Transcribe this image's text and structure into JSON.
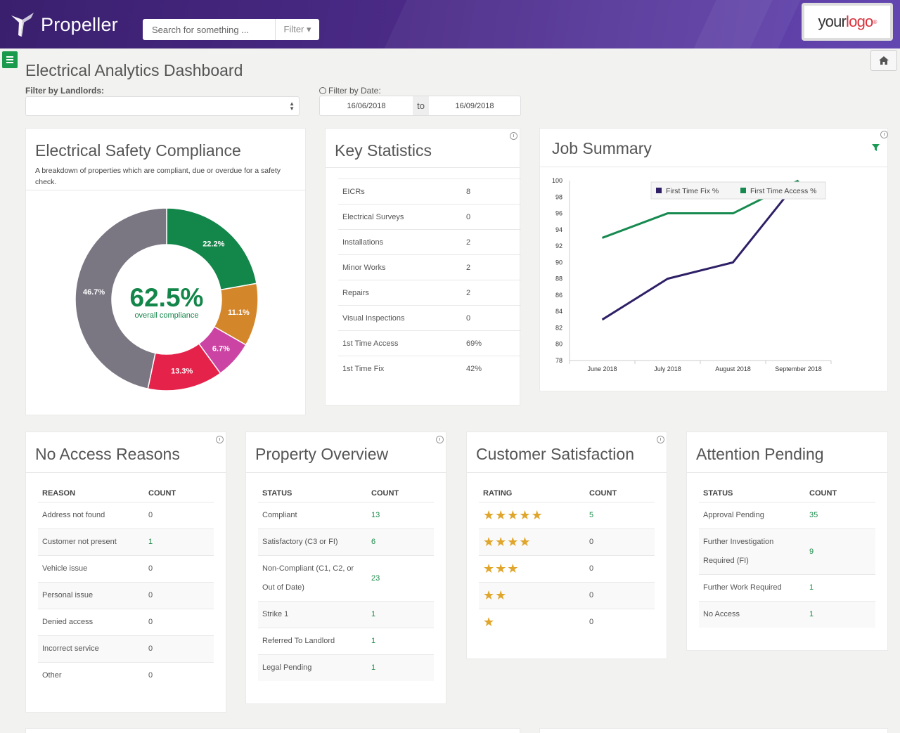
{
  "header": {
    "brand": "Propeller",
    "search_placeholder": "Search for something ...",
    "filter_label": "Filter ▾",
    "logo_your": "your",
    "logo_logo": "logo",
    "logo_reg": "®"
  },
  "page": {
    "title": "Electrical Analytics Dashboard",
    "landlord_label": "Filter by Landlords:",
    "date_label": "Filter by Date:",
    "date_from": "16/06/2018",
    "date_to_word": "to",
    "date_to": "16/09/2018"
  },
  "compliance": {
    "title": "Electrical Safety Compliance",
    "description": "A breakdown of properties which are compliant, due or overdue for a safety check.",
    "center_value": "62.5%",
    "center_label": "overall compliance",
    "slices": [
      {
        "label": "22.2%",
        "value": 22.2,
        "color": "#13864a"
      },
      {
        "label": "11.1%",
        "value": 11.1,
        "color": "#d4862a"
      },
      {
        "label": "6.7%",
        "value": 6.7,
        "color": "#cc44a3"
      },
      {
        "label": "13.3%",
        "value": 13.3,
        "color": "#e5224a"
      },
      {
        "label": "46.7%",
        "value": 46.7,
        "color": "#7a7682"
      }
    ]
  },
  "key_stats": {
    "title": "Key Statistics",
    "rows": [
      {
        "label": "EICRs",
        "value": "8"
      },
      {
        "label": "Electrical Surveys",
        "value": "0"
      },
      {
        "label": "Installations",
        "value": "2"
      },
      {
        "label": "Minor Works",
        "value": "2"
      },
      {
        "label": "Repairs",
        "value": "2"
      },
      {
        "label": "Visual Inspections",
        "value": "0"
      },
      {
        "label": "1st Time Access",
        "value": "69%"
      },
      {
        "label": "1st Time Fix",
        "value": "42%"
      }
    ]
  },
  "job_summary": {
    "title": "Job Summary",
    "chart_data": {
      "type": "line",
      "categories": [
        "June 2018",
        "July 2018",
        "August 2018",
        "September 2018"
      ],
      "series": [
        {
          "name": "First Time Fix %",
          "values": [
            83,
            88,
            90,
            100
          ],
          "color": "#2e1f66"
        },
        {
          "name": "First Time Access %",
          "values": [
            93,
            96,
            96,
            100
          ],
          "color": "#178a50"
        }
      ],
      "ylim": [
        78,
        100
      ],
      "yticks": [
        "100",
        "98",
        "96",
        "94",
        "92",
        "90",
        "88",
        "86",
        "84",
        "82",
        "80",
        "78"
      ],
      "legend": "top-right"
    }
  },
  "no_access": {
    "title": "No Access Reasons",
    "col1": "REASON",
    "col2": "COUNT",
    "rows": [
      {
        "label": "Address not found",
        "value": "0"
      },
      {
        "label": "Customer not present",
        "value": "1"
      },
      {
        "label": "Vehicle issue",
        "value": "0"
      },
      {
        "label": "Personal issue",
        "value": "0"
      },
      {
        "label": "Denied access",
        "value": "0"
      },
      {
        "label": "Incorrect service",
        "value": "0"
      },
      {
        "label": "Other",
        "value": "0"
      }
    ]
  },
  "property_overview": {
    "title": "Property Overview",
    "col1": "STATUS",
    "col2": "COUNT",
    "rows": [
      {
        "label": "Compliant",
        "value": "13"
      },
      {
        "label": "Satisfactory (C3 or FI)",
        "value": "6"
      },
      {
        "label": "Non-Compliant (C1, C2, or Out of Date)",
        "value": "23"
      },
      {
        "label": "Strike 1",
        "value": "1"
      },
      {
        "label": "Referred To Landlord",
        "value": "1"
      },
      {
        "label": "Legal Pending",
        "value": "1"
      }
    ]
  },
  "satisfaction": {
    "title": "Customer Satisfaction",
    "col1": "RATING",
    "col2": "COUNT",
    "rows": [
      {
        "stars": 5,
        "value": "5"
      },
      {
        "stars": 4,
        "value": "0"
      },
      {
        "stars": 3,
        "value": "0"
      },
      {
        "stars": 2,
        "value": "0"
      },
      {
        "stars": 1,
        "value": "0"
      }
    ]
  },
  "attention": {
    "title": "Attention Pending",
    "col1": "STATUS",
    "col2": "COUNT",
    "rows": [
      {
        "label": "Approval Pending",
        "value": "35"
      },
      {
        "label": "Further Investigation Required (FI)",
        "value": "9"
      },
      {
        "label": "Further Work Required",
        "value": "1"
      },
      {
        "label": "No Access",
        "value": "1"
      }
    ]
  }
}
